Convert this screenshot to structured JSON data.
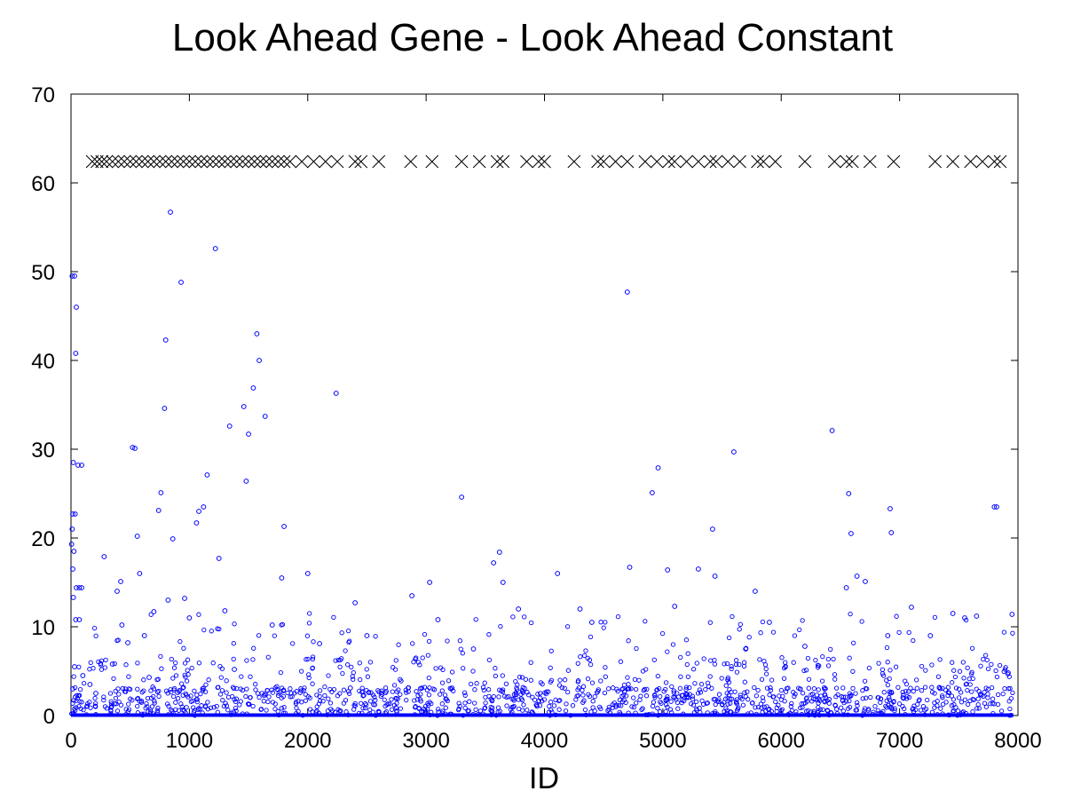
{
  "chart_data": {
    "type": "scatter",
    "title": "Look Ahead Gene - Look Ahead Constant",
    "xlabel": "ID",
    "ylabel": "",
    "xlim": [
      0,
      8000
    ],
    "ylim": [
      0,
      70
    ],
    "xticks": [
      "0",
      "1000",
      "2000",
      "3000",
      "4000",
      "5000",
      "6000",
      "7000",
      "8000"
    ],
    "yticks": [
      "0",
      "10",
      "20",
      "30",
      "40",
      "50",
      "60",
      "70"
    ],
    "grid": false,
    "legend": "none",
    "series": [
      {
        "marker": "circle",
        "color": "#0000ff",
        "points": [
          [
            10,
            49.5
          ],
          [
            30,
            49.5
          ],
          [
            45,
            46
          ],
          [
            40,
            40.8
          ],
          [
            20,
            28.5
          ],
          [
            60,
            28.2
          ],
          [
            90,
            28.2
          ],
          [
            15,
            22.7
          ],
          [
            35,
            22.7
          ],
          [
            10,
            21
          ],
          [
            5,
            19.3
          ],
          [
            25,
            18.5
          ],
          [
            15,
            16.5
          ],
          [
            45,
            14.4
          ],
          [
            70,
            14.4
          ],
          [
            90,
            14.4
          ],
          [
            20,
            13.3
          ],
          [
            40,
            10.8
          ],
          [
            70,
            10.8
          ],
          [
            30,
            5.5
          ],
          [
            15,
            3
          ],
          [
            100,
            4.5
          ],
          [
            160,
            3.5
          ],
          [
            210,
            2.5
          ],
          [
            280,
            17.9
          ],
          [
            350,
            5.8
          ],
          [
            390,
            14
          ],
          [
            420,
            15.1
          ],
          [
            430,
            10.2
          ],
          [
            480,
            8.2
          ],
          [
            520,
            30.2
          ],
          [
            540,
            30.1
          ],
          [
            560,
            20.2
          ],
          [
            580,
            16
          ],
          [
            620,
            9
          ],
          [
            660,
            4.3
          ],
          [
            700,
            11.7
          ],
          [
            740,
            23.1
          ],
          [
            760,
            25.1
          ],
          [
            790,
            34.6
          ],
          [
            800,
            42.3
          ],
          [
            820,
            13
          ],
          [
            840,
            56.7
          ],
          [
            860,
            19.9
          ],
          [
            900,
            2.6
          ],
          [
            930,
            48.8
          ],
          [
            960,
            13.2
          ],
          [
            1000,
            11
          ],
          [
            1060,
            21.7
          ],
          [
            1080,
            23
          ],
          [
            1120,
            23.5
          ],
          [
            1150,
            27.1
          ],
          [
            1220,
            52.6
          ],
          [
            1250,
            17.7
          ],
          [
            1300,
            11.8
          ],
          [
            1340,
            32.6
          ],
          [
            1380,
            5.2
          ],
          [
            1460,
            34.8
          ],
          [
            1480,
            26.4
          ],
          [
            1500,
            31.7
          ],
          [
            1540,
            36.9
          ],
          [
            1570,
            43
          ],
          [
            1590,
            40
          ],
          [
            1640,
            33.7
          ],
          [
            1700,
            10.2
          ],
          [
            1780,
            15.5
          ],
          [
            1800,
            21.3
          ],
          [
            2000,
            16
          ],
          [
            2100,
            8.1
          ],
          [
            2240,
            36.3
          ],
          [
            2360,
            3.1
          ],
          [
            2400,
            12.7
          ],
          [
            2500,
            9
          ],
          [
            2880,
            13.5
          ],
          [
            3030,
            15
          ],
          [
            3100,
            10.8
          ],
          [
            3300,
            24.6
          ],
          [
            3400,
            7.5
          ],
          [
            3570,
            17.2
          ],
          [
            3620,
            18.4
          ],
          [
            3650,
            15
          ],
          [
            3780,
            12
          ],
          [
            4110,
            16
          ],
          [
            4300,
            12
          ],
          [
            4400,
            10.5
          ],
          [
            4700,
            47.7
          ],
          [
            4720,
            16.7
          ],
          [
            4910,
            25.1
          ],
          [
            4960,
            27.9
          ],
          [
            5040,
            16.4
          ],
          [
            5100,
            12.3
          ],
          [
            5300,
            16.5
          ],
          [
            5420,
            21
          ],
          [
            5440,
            15.7
          ],
          [
            5600,
            29.7
          ],
          [
            5700,
            7.5
          ],
          [
            5780,
            14
          ],
          [
            5900,
            10.5
          ],
          [
            6200,
            7.8
          ],
          [
            6430,
            32.1
          ],
          [
            6550,
            14.4
          ],
          [
            6570,
            25
          ],
          [
            6590,
            20.5
          ],
          [
            6640,
            15.7
          ],
          [
            6710,
            15.1
          ],
          [
            6900,
            9
          ],
          [
            6920,
            23.3
          ],
          [
            6930,
            20.6
          ],
          [
            7100,
            12.2
          ],
          [
            7260,
            9
          ],
          [
            7450,
            11.5
          ],
          [
            7550,
            11
          ],
          [
            7650,
            11.2
          ],
          [
            7800,
            23.5
          ],
          [
            7820,
            23.5
          ],
          [
            7950,
            11.4
          ]
        ]
      },
      {
        "marker": "x",
        "color": "#000000",
        "y": 62.4,
        "x": [
          180,
          220,
          260,
          300,
          350,
          400,
          450,
          500,
          550,
          600,
          650,
          700,
          750,
          800,
          850,
          900,
          950,
          1000,
          1050,
          1100,
          1150,
          1200,
          1250,
          1300,
          1350,
          1400,
          1450,
          1500,
          1550,
          1600,
          1650,
          1700,
          1750,
          1800,
          1850,
          1950,
          2050,
          2150,
          2250,
          2400,
          2450,
          2600,
          2870,
          3050,
          3300,
          3450,
          3600,
          3650,
          3850,
          3950,
          4000,
          4250,
          4450,
          4500,
          4600,
          4700,
          4850,
          4950,
          5050,
          5100,
          5200,
          5300,
          5400,
          5450,
          5550,
          5650,
          5800,
          5850,
          5950,
          6200,
          6450,
          6550,
          6600,
          6750,
          6950,
          7300,
          7450,
          7600,
          7700,
          7800,
          7850
        ]
      }
    ]
  }
}
